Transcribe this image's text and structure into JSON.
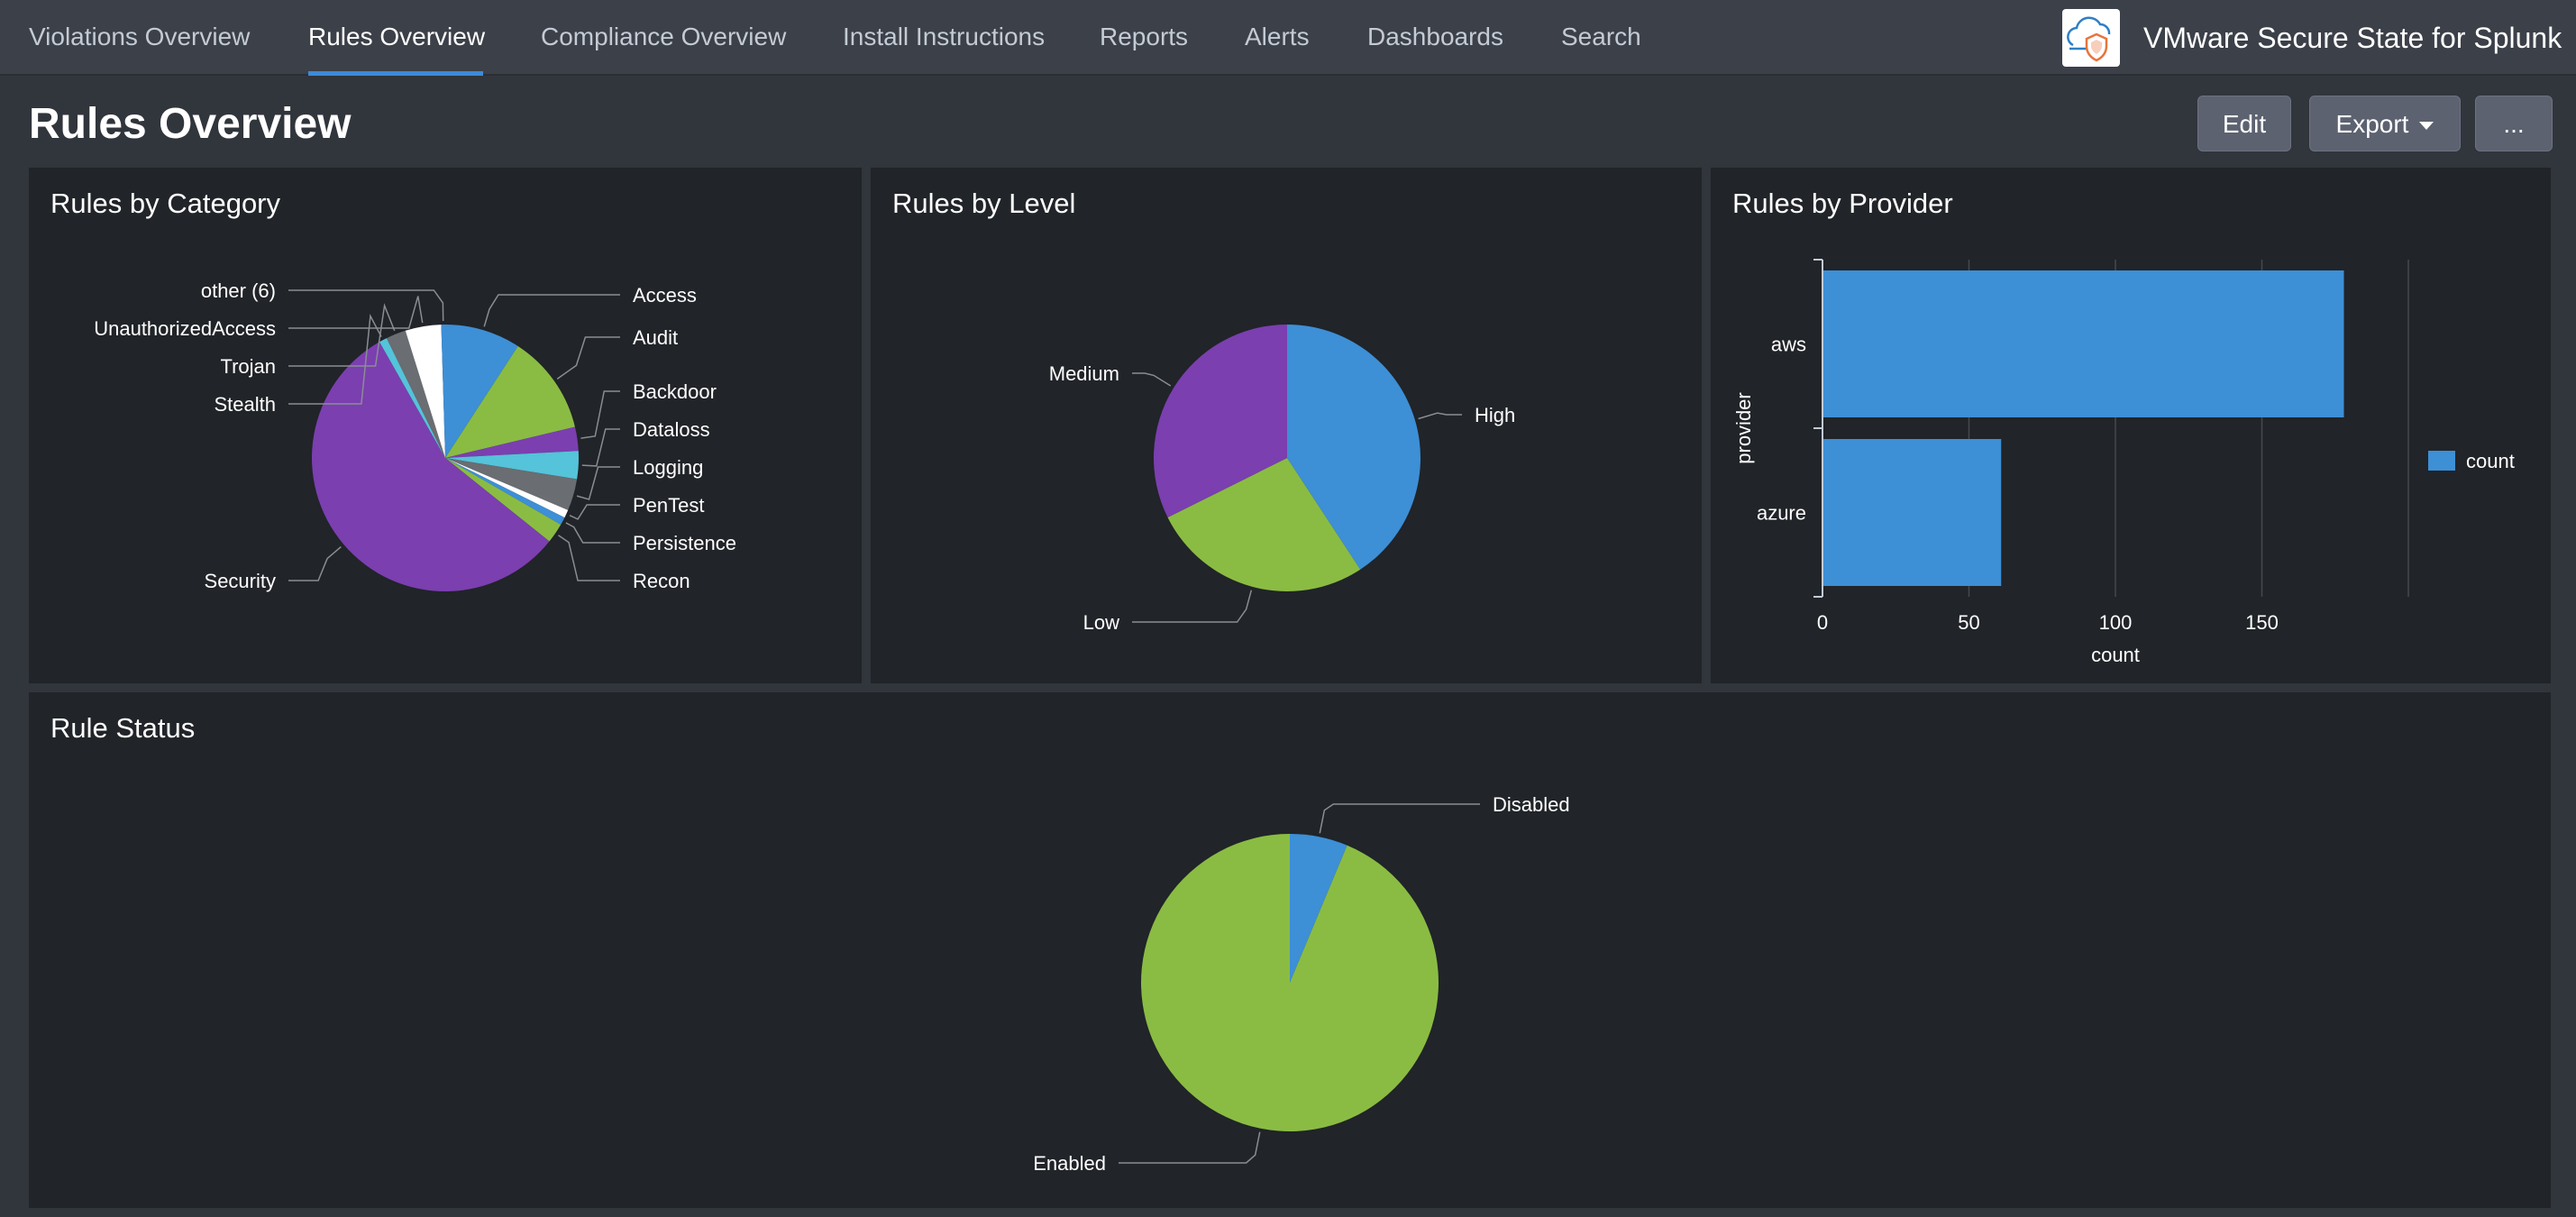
{
  "nav": {
    "tabs": [
      {
        "label": "Violations Overview"
      },
      {
        "label": "Rules Overview"
      },
      {
        "label": "Compliance Overview"
      },
      {
        "label": "Install Instructions"
      },
      {
        "label": "Reports"
      },
      {
        "label": "Alerts"
      },
      {
        "label": "Dashboards"
      },
      {
        "label": "Search"
      }
    ],
    "active_tab": "Rules Overview",
    "app_title": "VMware Secure State for Splunk",
    "logo_icon": "cloud-shield-icon"
  },
  "page": {
    "title": "Rules Overview",
    "buttons": {
      "edit": "Edit",
      "export": "Export",
      "more": "..."
    }
  },
  "colors": {
    "blue": "#3d8fd6",
    "green": "#8abc43",
    "purple": "#7b3fb0",
    "cyan": "#55c3d9",
    "gray": "#6a6d72",
    "white": "#ffffff"
  },
  "panels": {
    "category": {
      "title": "Rules by Category"
    },
    "level": {
      "title": "Rules by Level"
    },
    "provider": {
      "title": "Rules by Provider"
    },
    "status": {
      "title": "Rule Status"
    }
  },
  "chart_data": [
    {
      "type": "pie",
      "title": "Rules by Category",
      "slices": [
        {
          "label": "Access",
          "value": 19,
          "color": "#3d8fd6"
        },
        {
          "label": "Audit",
          "value": 25,
          "color": "#8abc43"
        },
        {
          "label": "Backdoor",
          "value": 6,
          "color": "#7b3fb0"
        },
        {
          "label": "Dataloss",
          "value": 7,
          "color": "#55c3d9"
        },
        {
          "label": "Logging",
          "value": 8,
          "color": "#6a6d72"
        },
        {
          "label": "PenTest",
          "value": 2,
          "color": "#ffffff"
        },
        {
          "label": "Persistence",
          "value": 2,
          "color": "#3d8fd6"
        },
        {
          "label": "Recon",
          "value": 5,
          "color": "#8abc43"
        },
        {
          "label": "Security",
          "value": 116,
          "color": "#7b3fb0"
        },
        {
          "label": "Stealth",
          "value": 2,
          "color": "#55c3d9"
        },
        {
          "label": "Trojan",
          "value": 5,
          "color": "#6a6d72"
        },
        {
          "label": "UnauthorizedAccess",
          "value": 9,
          "color": "#ffffff"
        },
        {
          "label": "other (6)",
          "value": 1,
          "color": "#3d8fd6"
        }
      ]
    },
    {
      "type": "pie",
      "title": "Rules by Level",
      "slices": [
        {
          "label": "High",
          "value": 97,
          "color": "#3d8fd6"
        },
        {
          "label": "Low",
          "value": 64,
          "color": "#8abc43"
        },
        {
          "label": "Medium",
          "value": 77,
          "color": "#7b3fb0"
        }
      ]
    },
    {
      "type": "bar",
      "orientation": "horizontal",
      "title": "Rules by Provider",
      "categories": [
        "aws",
        "azure"
      ],
      "values": [
        178,
        61
      ],
      "xlabel": "count",
      "ylabel": "provider",
      "xlim": [
        0,
        200
      ],
      "xticks": [
        0,
        50,
        100,
        150
      ],
      "legend": {
        "label": "count",
        "position": "right",
        "color": "#3d8fd6"
      }
    },
    {
      "type": "pie",
      "title": "Rule Status",
      "slices": [
        {
          "label": "Disabled",
          "value": 15,
          "color": "#3d8fd6"
        },
        {
          "label": "Enabled",
          "value": 223,
          "color": "#8abc43"
        }
      ]
    }
  ]
}
